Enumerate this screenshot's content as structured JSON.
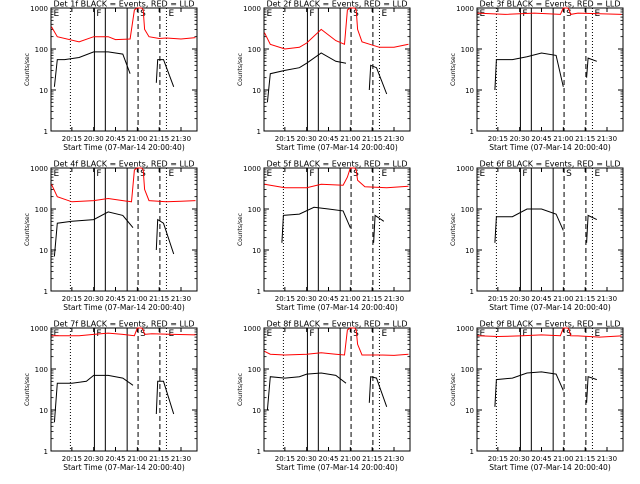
{
  "chart_data": {
    "type": "line",
    "y_scale": "log",
    "ylim": [
      1,
      1000
    ],
    "y_ticks": [
      {
        "value": 1,
        "label": "1"
      },
      {
        "value": 10,
        "label": "10"
      },
      {
        "value": 100,
        "label": "100"
      },
      {
        "value": 1000,
        "label": "1000"
      }
    ],
    "ylabel": "Counts/sec",
    "xlabel": "Start Time (07-Mar-14 20:00:40)",
    "x_unit": "HH:MM",
    "xlim": [
      "20:00:40",
      "21:41:00"
    ],
    "x_ticks": [
      "20:15",
      "20:30",
      "20:45",
      "21:00",
      "21:15",
      "21:30"
    ],
    "series_colors": {
      "events": "#000000",
      "lld": "#ff0000"
    },
    "markers": [
      {
        "time": "20:01:00",
        "label": "E",
        "style": "none"
      },
      {
        "time": "20:14:00",
        "label": "",
        "style": "dotted"
      },
      {
        "time": "20:30:30",
        "label": "F",
        "style": "solid"
      },
      {
        "time": "20:38:00",
        "label": "",
        "style": "solid"
      },
      {
        "time": "20:53:00",
        "label": "",
        "style": "solid"
      },
      {
        "time": "21:00:30",
        "label": "S",
        "style": "dashed"
      },
      {
        "time": "21:15:30",
        "label": "",
        "style": "dashed"
      },
      {
        "time": "21:20:00",
        "label": "E",
        "style": "dotted"
      }
    ],
    "panels": [
      {
        "title": "Det 1f BLACK = Events, RED = LLD",
        "events": {
          "t": [
            "20:03",
            "20:05",
            "20:10",
            "20:20",
            "20:30",
            "20:40",
            "20:50",
            "20:55",
            "21:01",
            "21:13",
            "21:14",
            "21:18",
            "21:25"
          ],
          "v": [
            12,
            55,
            55,
            62,
            85,
            85,
            75,
            25,
            null,
            15,
            55,
            55,
            12
          ]
        },
        "lld": {
          "t": [
            "20:01",
            "20:05",
            "20:20",
            "20:30",
            "20:40",
            "20:45",
            "20:55",
            "20:58",
            "21:00",
            "21:03",
            "21:04",
            "21:05",
            "21:08",
            "21:15",
            "21:20",
            "21:30",
            "21:40"
          ],
          "v": [
            350,
            200,
            150,
            200,
            200,
            170,
            175,
            900,
            1000,
            1000,
            900,
            300,
            200,
            180,
            185,
            175,
            190
          ]
        }
      },
      {
        "title": "Det 2f BLACK = Events, RED = LLD",
        "events": {
          "t": [
            "20:03",
            "20:05",
            "20:15",
            "20:25",
            "20:30",
            "20:40",
            "20:50",
            "20:57",
            "21:01",
            "21:13",
            "21:14",
            "21:18",
            "21:25"
          ],
          "v": [
            5,
            25,
            30,
            35,
            45,
            80,
            50,
            45,
            null,
            10,
            40,
            35,
            8
          ]
        },
        "lld": {
          "t": [
            "20:01",
            "20:05",
            "20:15",
            "20:25",
            "20:30",
            "20:40",
            "20:50",
            "20:56",
            "20:58",
            "21:00",
            "21:03",
            "21:04",
            "21:05",
            "21:08",
            "21:20",
            "21:30",
            "21:40"
          ],
          "v": [
            250,
            130,
            100,
            110,
            140,
            300,
            160,
            130,
            900,
            1000,
            1000,
            900,
            300,
            150,
            110,
            110,
            130
          ]
        }
      },
      {
        "title": "Det 3f BLACK = Events, RED = LLD",
        "events": {
          "t": [
            "20:13",
            "20:14",
            "20:25",
            "20:35",
            "20:45",
            "20:55",
            "21:00",
            "21:01",
            "21:16",
            "21:17",
            "21:23"
          ],
          "v": [
            10,
            55,
            55,
            65,
            80,
            70,
            12,
            null,
            20,
            60,
            50
          ]
        },
        "lld": {
          "t": [
            "20:01",
            "20:20",
            "20:40",
            "20:58",
            "21:00",
            "21:03",
            "21:04",
            "21:05",
            "21:10",
            "21:25",
            "21:40"
          ],
          "v": [
            750,
            700,
            750,
            700,
            1000,
            1000,
            900,
            700,
            750,
            720,
            700
          ]
        }
      },
      {
        "title": "Det 4f BLACK = Events, RED = LLD",
        "events": {
          "t": [
            "20:03",
            "20:05",
            "20:15",
            "20:30",
            "20:40",
            "20:50",
            "20:57",
            "21:01",
            "21:13",
            "21:14",
            "21:18",
            "21:25"
          ],
          "v": [
            7,
            45,
            50,
            55,
            85,
            70,
            35,
            null,
            10,
            55,
            45,
            8
          ]
        },
        "lld": {
          "t": [
            "20:01",
            "20:05",
            "20:15",
            "20:30",
            "20:40",
            "20:50",
            "20:56",
            "20:58",
            "21:00",
            "21:03",
            "21:04",
            "21:05",
            "21:08",
            "21:20",
            "21:30",
            "21:40"
          ],
          "v": [
            400,
            200,
            150,
            160,
            180,
            160,
            150,
            900,
            1000,
            1000,
            900,
            300,
            160,
            150,
            155,
            160
          ]
        }
      },
      {
        "title": "Det 5f BLACK = Events, RED = LLD",
        "events": {
          "t": [
            "20:13",
            "20:14",
            "20:25",
            "20:35",
            "20:45",
            "20:55",
            "21:00",
            "21:01",
            "21:16",
            "21:17",
            "21:23"
          ],
          "v": [
            15,
            70,
            75,
            110,
            100,
            90,
            35,
            null,
            15,
            70,
            50
          ]
        },
        "lld": {
          "t": [
            "20:01",
            "20:15",
            "20:30",
            "20:40",
            "20:55",
            "20:58",
            "21:00",
            "21:03",
            "21:04",
            "21:05",
            "21:10",
            "21:25",
            "21:40"
          ],
          "v": [
            400,
            330,
            330,
            400,
            380,
            600,
            1000,
            1000,
            900,
            500,
            350,
            330,
            360
          ]
        }
      },
      {
        "title": "Det 6f BLACK = Events, RED = LLD",
        "events": {
          "t": [
            "20:13",
            "20:14",
            "20:25",
            "20:35",
            "20:45",
            "20:55",
            "21:00",
            "21:01",
            "21:16",
            "21:17",
            "21:23"
          ],
          "v": [
            15,
            65,
            65,
            100,
            100,
            75,
            30,
            null,
            15,
            70,
            55
          ]
        },
        "lld": {
          "t": [],
          "v": []
        }
      },
      {
        "title": "Det 7f BLACK = Events, RED = LLD",
        "events": {
          "t": [
            "20:03",
            "20:05",
            "20:15",
            "20:25",
            "20:30",
            "20:40",
            "20:50",
            "20:57",
            "21:01",
            "21:13",
            "21:14",
            "21:18",
            "21:25"
          ],
          "v": [
            5,
            45,
            45,
            50,
            70,
            70,
            60,
            40,
            null,
            8,
            50,
            50,
            8
          ]
        },
        "lld": {
          "t": [
            "20:01",
            "20:10",
            "20:20",
            "20:30",
            "20:40",
            "20:50",
            "20:58",
            "21:00",
            "21:03",
            "21:04",
            "21:05",
            "21:10",
            "21:25",
            "21:40"
          ],
          "v": [
            650,
            650,
            650,
            700,
            750,
            700,
            650,
            1000,
            1000,
            900,
            700,
            720,
            700,
            680
          ]
        }
      },
      {
        "title": "Det 8f BLACK = Events, RED = LLD",
        "events": {
          "t": [
            "20:03",
            "20:05",
            "20:15",
            "20:25",
            "20:30",
            "20:40",
            "20:50",
            "20:57",
            "21:01",
            "21:13",
            "21:14",
            "21:18",
            "21:25"
          ],
          "v": [
            10,
            65,
            60,
            65,
            75,
            80,
            70,
            45,
            null,
            15,
            65,
            60,
            12
          ]
        },
        "lld": {
          "t": [
            "20:01",
            "20:05",
            "20:15",
            "20:30",
            "20:40",
            "20:50",
            "20:56",
            "20:58",
            "21:00",
            "21:03",
            "21:04",
            "21:05",
            "21:08",
            "21:20",
            "21:30",
            "21:40"
          ],
          "v": [
            270,
            230,
            220,
            230,
            250,
            230,
            220,
            900,
            1000,
            1000,
            900,
            400,
            220,
            220,
            215,
            230
          ]
        }
      },
      {
        "title": "Det 9f BLACK = Events, RED = LLD",
        "events": {
          "t": [
            "20:13",
            "20:14",
            "20:25",
            "20:35",
            "20:45",
            "20:55",
            "21:00",
            "21:01",
            "21:16",
            "21:17",
            "21:23"
          ],
          "v": [
            12,
            55,
            60,
            80,
            85,
            75,
            30,
            null,
            15,
            65,
            55
          ]
        },
        "lld": {
          "t": [
            "20:01",
            "20:15",
            "20:30",
            "20:45",
            "20:58",
            "21:00",
            "21:03",
            "21:04",
            "21:05",
            "21:10",
            "21:25",
            "21:40"
          ],
          "v": [
            650,
            620,
            640,
            680,
            650,
            1000,
            1000,
            900,
            650,
            640,
            600,
            640
          ]
        }
      }
    ]
  }
}
